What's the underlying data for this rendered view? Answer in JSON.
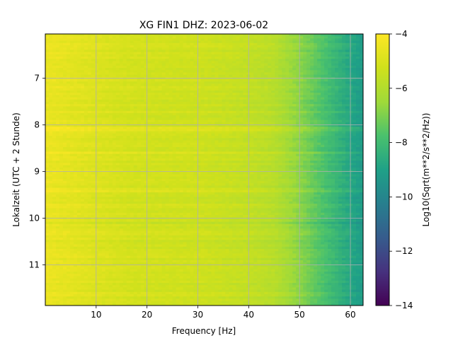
{
  "chart_data": {
    "type": "heatmap",
    "title": "XG FIN1  DHZ: 2023-06-02",
    "xlabel": "Frequency [Hz]",
    "ylabel": "Lokalzeit (UTC + 2 Stunde)",
    "xlim": [
      0.0,
      62.5
    ],
    "ylim": [
      11.87,
      6.05
    ],
    "y_inverted": true,
    "x_ticks": [
      10,
      20,
      30,
      40,
      50,
      60
    ],
    "y_ticks": [
      7,
      8,
      9,
      10,
      11
    ],
    "grid": true,
    "colormap": "viridis",
    "colorbar": {
      "label": "Log10(Sqrt(m**2/s**2/Hz))",
      "range": [
        -14,
        -4
      ],
      "ticks": [
        -4,
        -6,
        -8,
        -10,
        -12,
        -14
      ]
    },
    "frequency_profile": {
      "x": [
        0,
        5,
        10,
        15,
        20,
        30,
        40,
        45,
        50,
        55,
        60,
        62.5
      ],
      "y": [
        -4.5,
        -4.7,
        -4.9,
        -5.1,
        -5.2,
        -5.3,
        -5.6,
        -5.9,
        -6.8,
        -7.8,
        -8.8,
        -9.2
      ]
    },
    "time_bands": [
      {
        "time": 8.1,
        "offset": 0.35
      },
      {
        "time": 8.6,
        "offset": 0.35
      },
      {
        "time": 9.4,
        "offset": 0.3
      },
      {
        "time": 10.1,
        "offset": -0.25
      },
      {
        "time": 10.5,
        "offset": -0.25
      },
      {
        "time": 11.1,
        "offset": 0.2
      }
    ]
  }
}
